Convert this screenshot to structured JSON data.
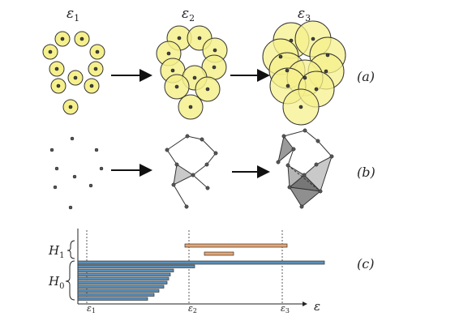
{
  "epsilon_labels": [
    "ε1",
    "ε2",
    "ε3"
  ],
  "row_labels": [
    "(a)",
    "(b)",
    "(c)"
  ],
  "barcode": {
    "h1_label": "H1",
    "h0_label": "H0",
    "axis_label": "ε",
    "tick_labels": [
      "ε1",
      "ε2",
      "ε3"
    ],
    "colors": {
      "h0": "#5b8fb9",
      "h1": "#e8a572",
      "ball": "#f5f08c"
    }
  }
}
